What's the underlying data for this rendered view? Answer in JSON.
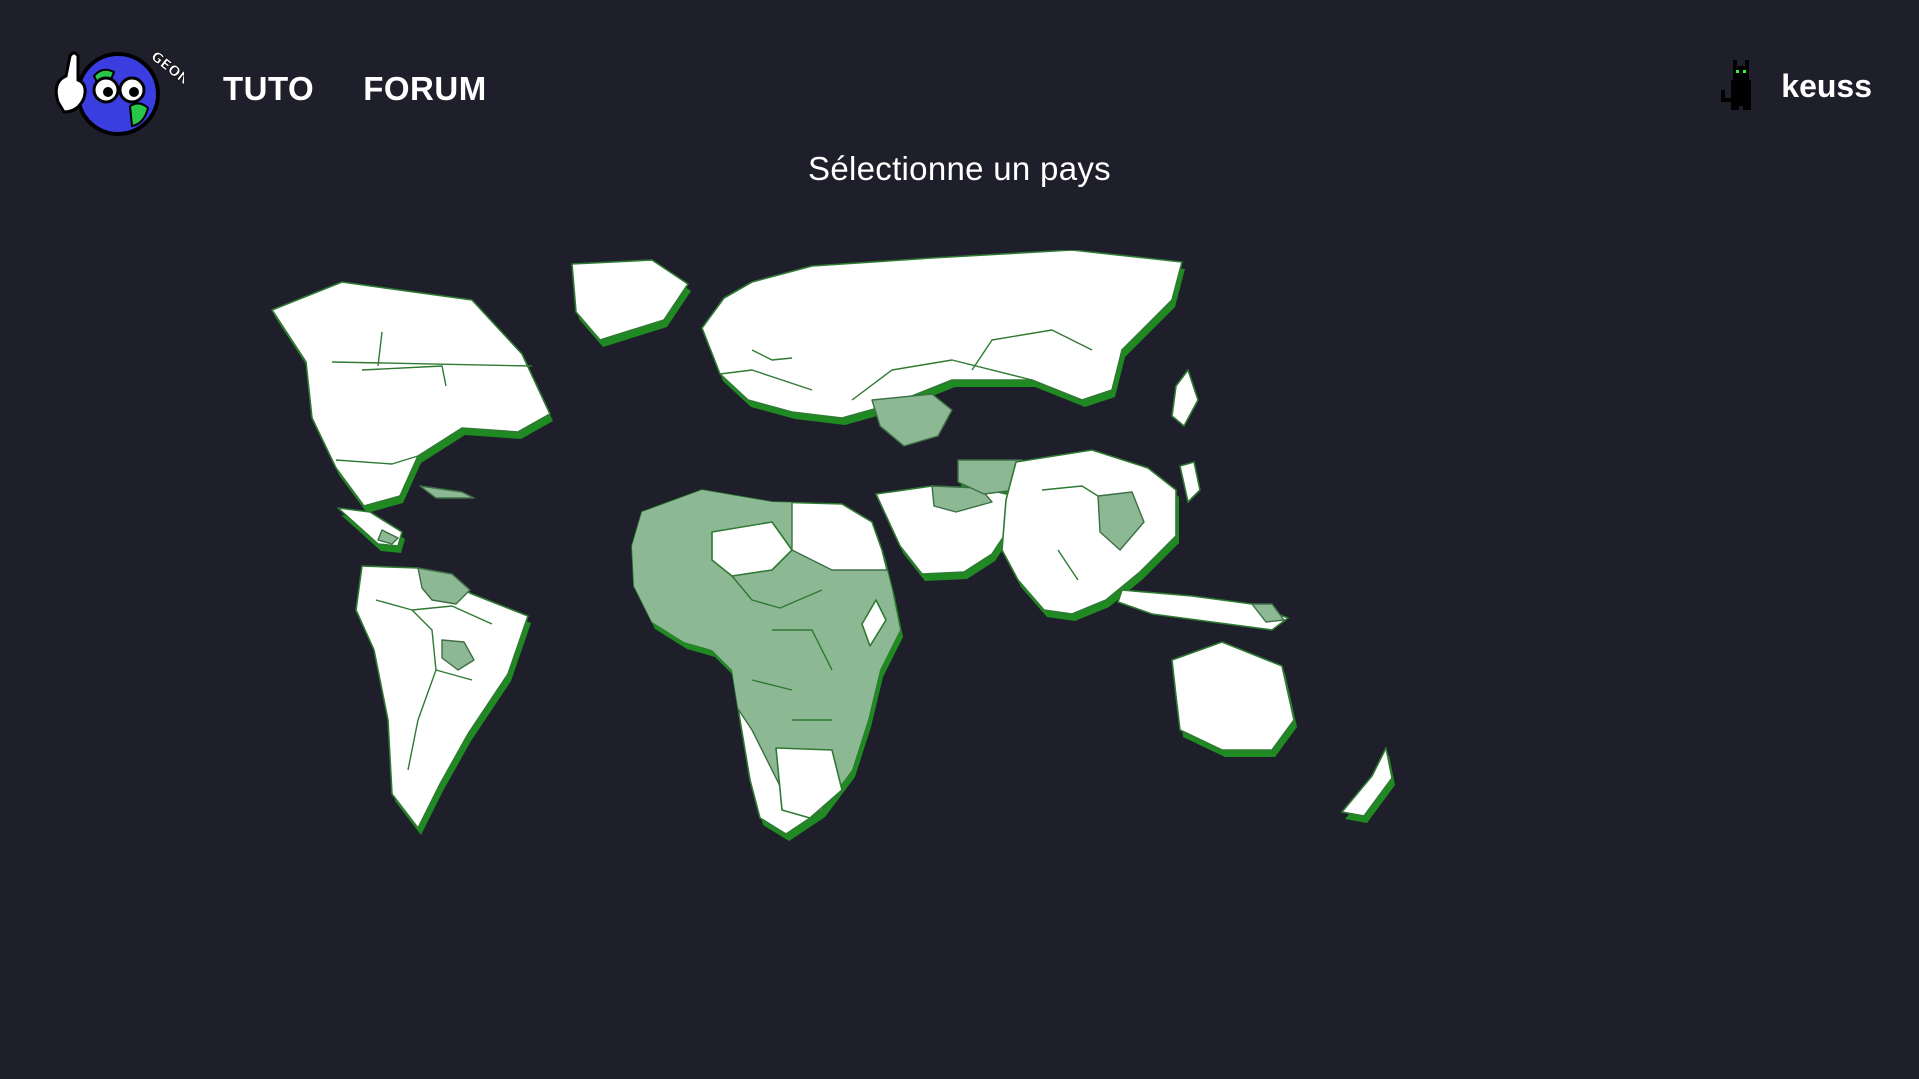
{
  "header": {
    "logo_text": "GEONERD",
    "nav": [
      {
        "label": "TUTO"
      },
      {
        "label": "FORUM"
      }
    ],
    "user": {
      "name": "keuss",
      "avatar_icon": "pixel-cat-icon"
    }
  },
  "main": {
    "title": "Sélectionne un pays"
  },
  "map": {
    "land_color": "#ffffff",
    "edge_color": "#1f8a21",
    "highlight_color": "#8db894",
    "background_color": "#1f1f2b"
  }
}
